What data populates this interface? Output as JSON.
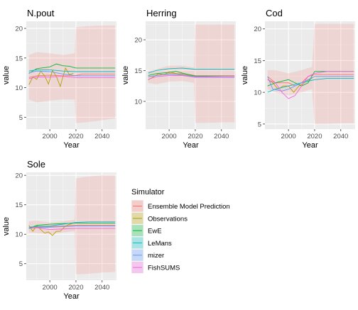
{
  "legend": {
    "title": "Simulator",
    "placement": "right of bottom-left panel",
    "entries": [
      {
        "key": "ensemble",
        "label": "Ensemble Model Prediction",
        "color": "#F8766D"
      },
      {
        "key": "observations",
        "label": "Observations",
        "color": "#B79F00"
      },
      {
        "key": "ewe",
        "label": "EwE",
        "color": "#00BA38"
      },
      {
        "key": "lemans",
        "label": "LeMans",
        "color": "#00BFC4"
      },
      {
        "key": "mizer",
        "label": "mizer",
        "color": "#619CFF"
      },
      {
        "key": "fishsums",
        "label": "FishSUMS",
        "color": "#F564E3"
      }
    ]
  },
  "chart_data": [
    {
      "type": "line",
      "title": "N.pout",
      "xlabel": "Year",
      "ylabel": "value",
      "xlim": [
        1982,
        2051
      ],
      "ylim": [
        3,
        21.2
      ],
      "xticks": [
        2000,
        2020,
        2040
      ],
      "yticks": [
        5,
        10,
        15,
        20
      ],
      "grid": true,
      "band": {
        "x": [
          1984,
          1990,
          2000,
          2010,
          2019,
          2020,
          2030,
          2040,
          2050
        ],
        "lo": [
          8.0,
          7.5,
          7.8,
          8.0,
          8.0,
          4.0,
          4.2,
          4.5,
          4.8
        ],
        "hi": [
          15.5,
          16.0,
          15.8,
          15.5,
          15.8,
          20.2,
          20.4,
          20.5,
          20.5
        ]
      },
      "series": [
        {
          "name": "Ensemble Model Prediction",
          "x": [
            1984,
            1990,
            2000,
            2010,
            2019,
            2025,
            2035,
            2050
          ],
          "y": [
            11.7,
            12.0,
            12.1,
            12.0,
            12.0,
            12.3,
            12.3,
            12.3
          ]
        },
        {
          "name": "Observations",
          "x": [
            1984,
            1987,
            1990,
            1993,
            1996,
            1999,
            2002,
            2005,
            2008,
            2010,
            2012,
            2015,
            2018
          ],
          "y": [
            10.5,
            11.8,
            11.4,
            12.8,
            12.0,
            10.6,
            12.9,
            11.9,
            10.2,
            11.8,
            13.3,
            12.2,
            12.4
          ]
        },
        {
          "name": "EwE",
          "x": [
            1984,
            1990,
            2000,
            2005,
            2010,
            2015,
            2020,
            2050
          ],
          "y": [
            12.4,
            13.2,
            13.5,
            14.0,
            13.7,
            13.6,
            13.3,
            13.3
          ]
        },
        {
          "name": "LeMans",
          "x": [
            1984,
            1990,
            2000,
            2010,
            2020,
            2050
          ],
          "y": [
            12.8,
            13.0,
            13.0,
            12.8,
            12.7,
            12.7
          ]
        },
        {
          "name": "mizer",
          "x": [
            1984,
            1990,
            2000,
            2010,
            2020,
            2050
          ],
          "y": [
            12.5,
            12.8,
            12.7,
            12.3,
            12.0,
            12.0
          ]
        },
        {
          "name": "FishSUMS",
          "x": [
            1984,
            1990,
            2000,
            2010,
            2020,
            2050
          ],
          "y": [
            11.5,
            11.8,
            11.8,
            11.9,
            11.7,
            11.7
          ]
        }
      ]
    },
    {
      "type": "line",
      "title": "Herring",
      "xlabel": "Year",
      "ylabel": "value",
      "xlim": [
        1982,
        2051
      ],
      "ylim": [
        5.5,
        23.0
      ],
      "xticks": [
        2000,
        2020,
        2040
      ],
      "yticks": [
        10,
        15,
        20
      ],
      "grid": true,
      "band": {
        "x": [
          1984,
          1990,
          2000,
          2010,
          2019,
          2020,
          2030,
          2040,
          2050
        ],
        "lo": [
          13.0,
          12.8,
          13.2,
          13.3,
          13.0,
          6.5,
          6.5,
          6.6,
          6.6
        ],
        "hi": [
          15.0,
          15.2,
          15.8,
          15.8,
          15.5,
          22.5,
          22.5,
          22.5,
          22.5
        ]
      },
      "series": [
        {
          "name": "Ensemble Model Prediction",
          "x": [
            1984,
            1990,
            2000,
            2010,
            2020,
            2050
          ],
          "y": [
            14.0,
            14.2,
            14.5,
            14.5,
            14.2,
            14.2
          ]
        },
        {
          "name": "Observations",
          "x": [
            1984,
            1988,
            1992,
            1996,
            2000,
            2004,
            2008,
            2012,
            2016,
            2018
          ],
          "y": [
            13.5,
            14.0,
            14.5,
            14.3,
            14.8,
            14.6,
            14.4,
            14.3,
            14.2,
            14.1
          ]
        },
        {
          "name": "EwE",
          "x": [
            1984,
            1990,
            2000,
            2005,
            2010,
            2020,
            2050
          ],
          "y": [
            14.2,
            14.5,
            14.7,
            14.9,
            14.6,
            14.1,
            14.0
          ]
        },
        {
          "name": "LeMans",
          "x": [
            1984,
            1990,
            2000,
            2010,
            2020,
            2050
          ],
          "y": [
            14.6,
            15.0,
            15.3,
            15.4,
            15.2,
            15.2
          ]
        },
        {
          "name": "mizer",
          "x": [
            1984,
            1990,
            2000,
            2010,
            2020,
            2050
          ],
          "y": [
            14.0,
            14.2,
            14.4,
            14.3,
            14.0,
            14.0
          ]
        },
        {
          "name": "FishSUMS",
          "x": [
            1984,
            1990,
            2000,
            2010,
            2020,
            2050
          ],
          "y": [
            13.6,
            14.0,
            14.2,
            14.2,
            13.9,
            13.9
          ]
        }
      ]
    },
    {
      "type": "line",
      "title": "Cod",
      "xlabel": "Year",
      "ylabel": "value",
      "xlim": [
        1982,
        2051
      ],
      "ylim": [
        4.2,
        21.2
      ],
      "xticks": [
        2000,
        2020,
        2040
      ],
      "yticks": [
        5,
        10,
        15,
        20
      ],
      "grid": true,
      "band": {
        "x": [
          1984,
          1990,
          2000,
          2010,
          2018,
          2020,
          2030,
          2040,
          2050
        ],
        "lo": [
          10.5,
          10.0,
          9.5,
          10.0,
          10.5,
          5.0,
          5.0,
          5.1,
          5.1
        ],
        "hi": [
          13.5,
          13.5,
          13.0,
          13.5,
          14.0,
          20.8,
          20.8,
          20.8,
          20.8
        ]
      },
      "series": [
        {
          "name": "Ensemble Model Prediction",
          "x": [
            1984,
            1990,
            2000,
            2005,
            2010,
            2015,
            2020,
            2030,
            2050
          ],
          "y": [
            12.5,
            11.5,
            11.5,
            11.0,
            11.5,
            12.5,
            12.8,
            12.8,
            12.8
          ]
        },
        {
          "name": "Observations",
          "x": [
            1984,
            1988,
            1992,
            1996,
            2000,
            2004,
            2008,
            2012,
            2016,
            2018
          ],
          "y": [
            12.0,
            11.5,
            10.5,
            11.0,
            11.0,
            10.0,
            11.0,
            11.5,
            12.0,
            12.2
          ]
        },
        {
          "name": "EwE",
          "x": [
            1984,
            1990,
            2000,
            2005,
            2010,
            2015,
            2020,
            2050
          ],
          "y": [
            11.0,
            11.5,
            12.0,
            11.5,
            11.0,
            11.5,
            13.3,
            13.3
          ]
        },
        {
          "name": "LeMans",
          "x": [
            1984,
            1990,
            2000,
            2010,
            2020,
            2030,
            2050
          ],
          "y": [
            10.0,
            10.5,
            11.0,
            11.5,
            12.0,
            12.2,
            12.2
          ]
        },
        {
          "name": "mizer",
          "x": [
            1984,
            1988,
            1995,
            2000,
            2010,
            2020,
            2050
          ],
          "y": [
            12.5,
            10.5,
            10.2,
            10.5,
            11.5,
            12.5,
            12.5
          ]
        },
        {
          "name": "FishSUMS",
          "x": [
            1984,
            1990,
            1995,
            2000,
            2005,
            2010,
            2015,
            2020,
            2030,
            2050
          ],
          "y": [
            12.0,
            11.5,
            10.0,
            9.0,
            9.5,
            11.0,
            12.5,
            13.0,
            13.3,
            13.3
          ]
        }
      ]
    },
    {
      "type": "line",
      "title": "Sole",
      "xlabel": "Year",
      "ylabel": "value",
      "xlim": [
        1982,
        2051
      ],
      "ylim": [
        2.2,
        20.5
      ],
      "xticks": [
        2000,
        2020,
        2040
      ],
      "yticks": [
        5,
        10,
        15,
        20
      ],
      "grid": true,
      "band": {
        "x": [
          1984,
          1990,
          2000,
          2010,
          2019,
          2020,
          2030,
          2040,
          2050
        ],
        "lo": [
          10.3,
          10.2,
          10.0,
          10.3,
          10.5,
          3.2,
          3.3,
          3.5,
          3.6
        ],
        "hi": [
          12.2,
          12.3,
          12.0,
          12.2,
          12.5,
          19.5,
          19.8,
          20.0,
          20.0
        ]
      },
      "series": [
        {
          "name": "Ensemble Model Prediction",
          "x": [
            1984,
            1990,
            2000,
            2010,
            2020,
            2050
          ],
          "y": [
            11.0,
            11.2,
            11.3,
            11.4,
            11.5,
            11.5
          ]
        },
        {
          "name": "Observations",
          "x": [
            1984,
            1987,
            1990,
            1993,
            1996,
            1999,
            2002,
            2005,
            2008,
            2011,
            2014,
            2017
          ],
          "y": [
            11.5,
            10.5,
            11.5,
            10.8,
            10.2,
            10.4,
            9.8,
            10.5,
            10.5,
            11.2,
            11.6,
            11.8
          ]
        },
        {
          "name": "EwE",
          "x": [
            1984,
            1990,
            2000,
            2010,
            2020,
            2050
          ],
          "y": [
            11.0,
            11.5,
            11.7,
            11.8,
            11.9,
            11.9
          ]
        },
        {
          "name": "LeMans",
          "x": [
            1984,
            1990,
            2000,
            2010,
            2020,
            2030,
            2050
          ],
          "y": [
            11.2,
            11.3,
            11.4,
            11.7,
            12.0,
            12.1,
            12.1
          ]
        },
        {
          "name": "mizer",
          "x": [
            1984,
            1990,
            2000,
            2010,
            2020,
            2050
          ],
          "y": [
            11.0,
            11.1,
            11.2,
            11.3,
            11.4,
            11.4
          ]
        },
        {
          "name": "FishSUMS",
          "x": [
            1984,
            1990,
            2000,
            2010,
            2020,
            2050
          ],
          "y": [
            11.0,
            11.1,
            10.8,
            10.9,
            11.0,
            11.0
          ]
        }
      ]
    }
  ]
}
